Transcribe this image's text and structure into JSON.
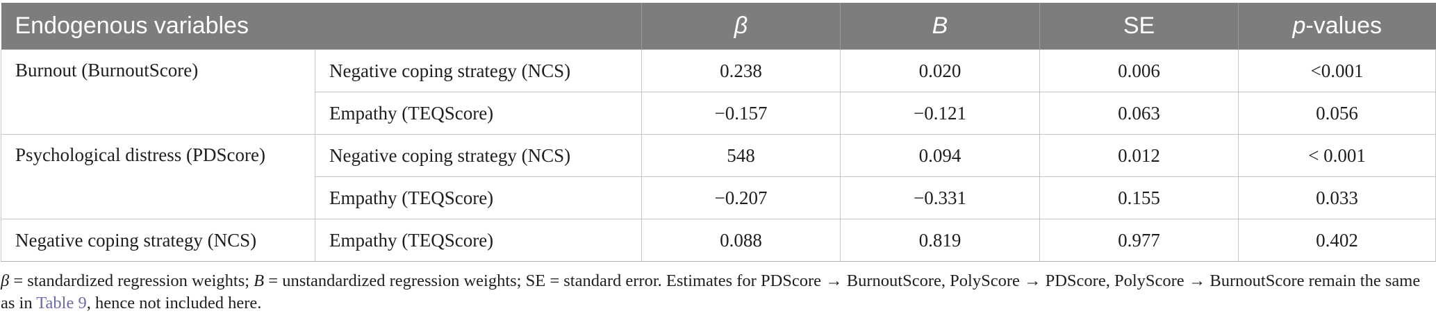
{
  "table": {
    "headers": {
      "col1": "Endogenous variables",
      "beta": "β",
      "b": "B",
      "se": "SE",
      "p_prefix": "p",
      "p_suffix": "-values"
    },
    "groups": [
      {
        "outcome": "Burnout (BurnoutScore)",
        "rows": [
          {
            "predictor": "Negative coping strategy (NCS)",
            "beta": "0.238",
            "b": "0.020",
            "se": "0.006",
            "p": "<0.001"
          },
          {
            "predictor": "Empathy (TEQScore)",
            "beta": "−0.157",
            "b": "−0.121",
            "se": "0.063",
            "p": "0.056"
          }
        ]
      },
      {
        "outcome": "Psychological distress (PDScore)",
        "rows": [
          {
            "predictor": "Negative coping strategy (NCS)",
            "beta": "548",
            "b": "0.094",
            "se": "0.012",
            "p": "< 0.001"
          },
          {
            "predictor": "Empathy (TEQScore)",
            "beta": "−0.207",
            "b": "−0.331",
            "se": "0.155",
            "p": "0.033"
          }
        ]
      },
      {
        "outcome": "Negative coping strategy (NCS)",
        "rows": [
          {
            "predictor": "Empathy (TEQScore)",
            "beta": "0.088",
            "b": "0.819",
            "se": "0.977",
            "p": "0.402"
          }
        ]
      }
    ]
  },
  "note": {
    "beta_sym": "β",
    "beta_def": " = standardized regression weights; ",
    "b_sym": "B",
    "b_def": " = unstandardized regression weights; SE = standard error. Estimates for PDScore → BurnoutScore, PolyScore → PDScore, PolyScore → BurnoutScore remain the same as in ",
    "link_text": "Table 9",
    "tail": ", hence not included here."
  }
}
